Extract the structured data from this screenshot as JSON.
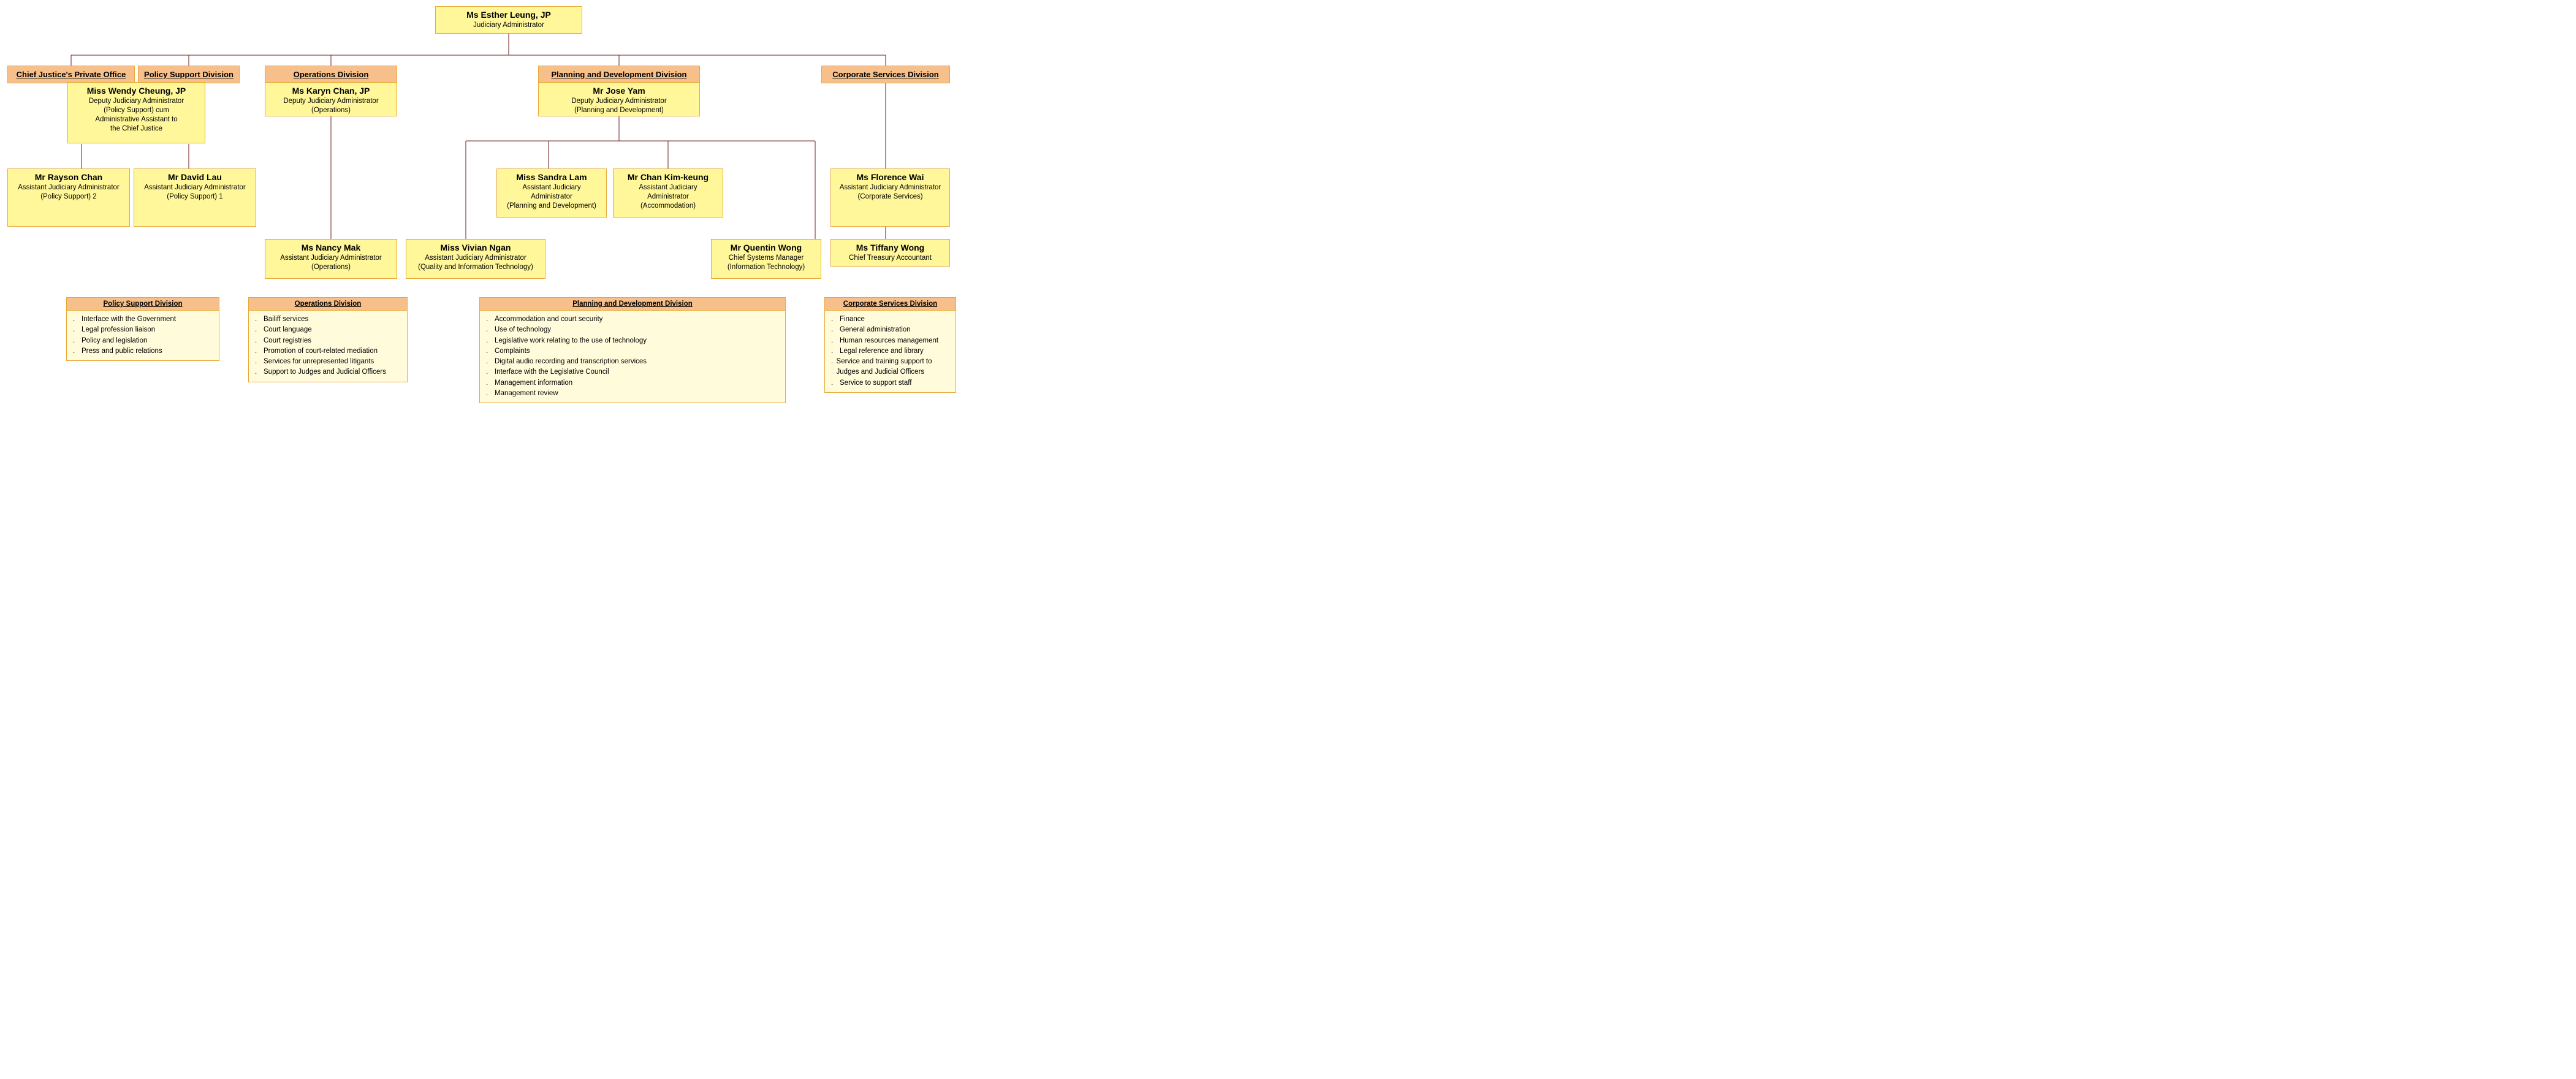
{
  "colors": {
    "header_bg": "#f7c08a",
    "box_bg": "#fff799",
    "desc_bg": "#fffbdb",
    "border": "#e8a838",
    "connector": "#6b1a1a",
    "page_bg": "#ffffff"
  },
  "top": {
    "name": "Ms Esther Leung, JP",
    "role": "Judiciary Administrator"
  },
  "headers": {
    "cj": "Chief Justice's Private Office",
    "ps": "Policy Support Division",
    "ops": "Operations Division",
    "pd": "Planning and Development Division",
    "cs": "Corporate Services Division"
  },
  "deputies": {
    "ps": {
      "name": "Miss Wendy Cheung, JP",
      "role1": "Deputy Judiciary Administrator",
      "role2": "(Policy Support) cum",
      "role3": "Administrative Assistant to",
      "role4": "the Chief Justice"
    },
    "ops": {
      "name": "Ms Karyn Chan, JP",
      "role1": "Deputy Judiciary Administrator",
      "role2": "(Operations)"
    },
    "pd": {
      "name": "Mr Jose Yam",
      "role1": "Deputy Judiciary Administrator",
      "role2": "(Planning and Development)"
    }
  },
  "assistants": {
    "rayson": {
      "name": "Mr Rayson Chan",
      "role1": "Assistant Judiciary Administrator",
      "role2": "(Policy Support) 2"
    },
    "david": {
      "name": "Mr David Lau",
      "role1": "Assistant Judiciary Administrator",
      "role2": "(Policy Support) 1"
    },
    "nancy": {
      "name": "Ms Nancy Mak",
      "role1": "Assistant Judiciary Administrator",
      "role2": "(Operations)"
    },
    "sandra": {
      "name": "Miss Sandra Lam",
      "role1": "Assistant Judiciary Administrator",
      "role2": "(Planning and Development)"
    },
    "chan": {
      "name": "Mr Chan Kim-keung",
      "role1": "Assistant Judiciary Administrator",
      "role2": "(Accommodation)"
    },
    "vivian": {
      "name": "Miss Vivian Ngan",
      "role1": "Assistant Judiciary Administrator",
      "role2": "(Quality and Information Technology)"
    },
    "quentin": {
      "name": "Mr Quentin Wong",
      "role1": "Chief Systems Manager",
      "role2": "(Information Technology)"
    },
    "florence": {
      "name": "Ms Florence Wai",
      "role1": "Assistant Judiciary Administrator",
      "role2": "(Corporate Services)"
    },
    "tiffany": {
      "name": "Ms Tiffany Wong",
      "role1": "Chief Treasury Accountant"
    }
  },
  "desc": {
    "ps": {
      "title": "Policy Support Division",
      "items": [
        "Interface with the Government",
        "Legal profession liaison",
        "Policy and legislation",
        "Press and public relations"
      ]
    },
    "ops": {
      "title": "Operations Division",
      "items": [
        "Bailiff services",
        "Court language",
        "Court registries",
        "Promotion of court-related mediation",
        "Services for unrepresented litigants",
        "Support to Judges and Judicial Officers"
      ]
    },
    "pd": {
      "title": "Planning and Development Division",
      "items": [
        "Accommodation and court security",
        "Use of technology",
        "Legislative work relating to the use of technology",
        "Complaints",
        "Digital audio recording and transcription services",
        "Interface with the Legislative Council",
        "Management information",
        "Management review"
      ]
    },
    "cs": {
      "title": "Corporate Services Division",
      "items": [
        "Finance",
        "General administration",
        "Human resources management",
        "Legal reference and library",
        "Service and training support to Judges and Judicial Officers",
        "Service to support staff"
      ]
    }
  }
}
